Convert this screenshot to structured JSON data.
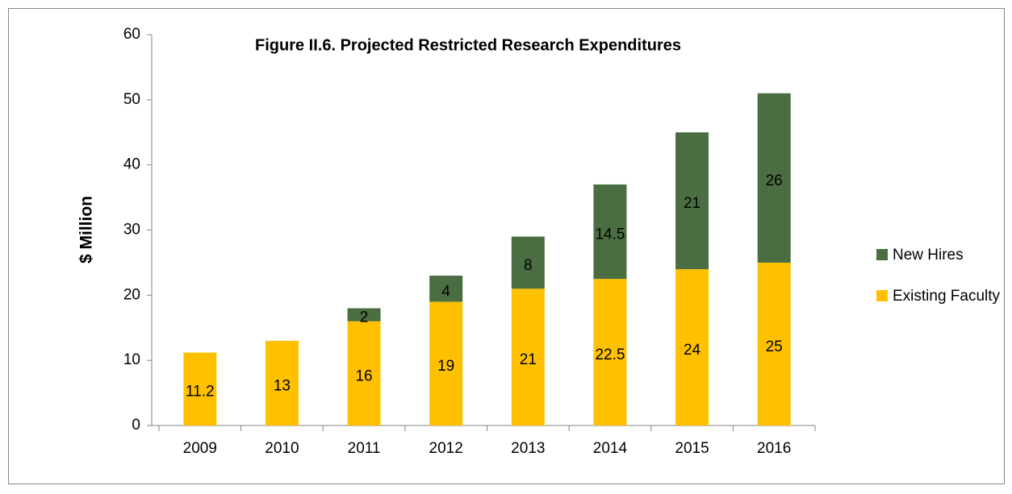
{
  "chart_data": {
    "type": "bar",
    "stacked": true,
    "title": "Figure II.6. Projected Restricted Research Expenditures",
    "y_label": "$ Million",
    "categories": [
      "2009",
      "2010",
      "2011",
      "2012",
      "2013",
      "2014",
      "2015",
      "2016"
    ],
    "series": [
      {
        "name": "Existing Faculty",
        "color": "#ffc000",
        "values": [
          11.2,
          13,
          16,
          19,
          21,
          22.5,
          24,
          25
        ]
      },
      {
        "name": "New Hires",
        "color": "#4a6d41",
        "values": [
          null,
          null,
          2,
          4,
          8,
          14.5,
          21,
          26
        ]
      }
    ],
    "ylim": [
      0,
      60
    ],
    "yticks": [
      0,
      10,
      20,
      30,
      40,
      50,
      60
    ],
    "grid": false,
    "legend": "right"
  }
}
